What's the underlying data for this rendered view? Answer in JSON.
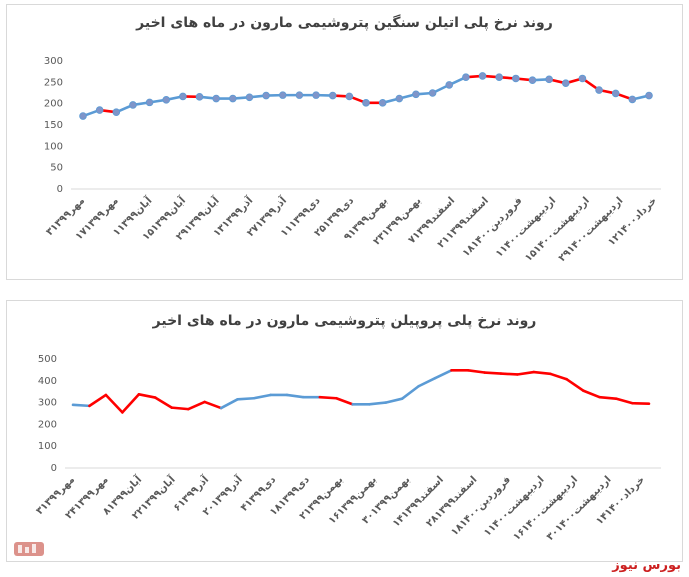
{
  "footer": {
    "source": "بورس نیوز"
  },
  "colors": {
    "blue": "#5b9bd5",
    "red": "#ff0000",
    "marker": "#7f95c9"
  },
  "chart_data": [
    {
      "type": "line",
      "title": "روند نرخ پلی اتیلن سنگین پتروشیمی مارون در ماه های اخیر",
      "markers": true,
      "ylim": [
        0,
        300
      ],
      "yticks": [
        "0",
        "50",
        "100",
        "150",
        "200",
        "250",
        "300"
      ],
      "x_labels": [
        "۳مهر۱۳۹۹",
        "۱۷مهر۱۳۹۹",
        "۱آبان۱۳۹۹",
        "۱۵آبان۱۳۹۹",
        "۲۹آبان۱۳۹۹",
        "۱۳آذر۱۳۹۹",
        "۲۷آذر۱۳۹۹",
        "۱۱دی۱۳۹۹",
        "۲۵دی۱۳۹۹",
        "۹بهمن۱۳۹۹",
        "۲۳بهمن۱۳۹۹",
        "۷اسفند۱۳۹۹",
        "۲۱اسفند۱۳۹۹",
        "۱۸فروردین۱۴۰۰",
        "۱اردیبهشت۱۴۰۰",
        "۱۵اردیبهشت۱۴۰۰",
        "۲۹اردیبهشت۱۴۰۰",
        "۱۲خرداد۱۴۰۰"
      ],
      "values": [
        171,
        185,
        180,
        197,
        203,
        209,
        217,
        216,
        212,
        212,
        215,
        219,
        220,
        220,
        220,
        219,
        217,
        202,
        202,
        212,
        222,
        225,
        244,
        262,
        265,
        262,
        259,
        255,
        257,
        248,
        259,
        232,
        224,
        210,
        219
      ],
      "segment_colors": [
        "blue",
        "red",
        "blue",
        "blue",
        "blue",
        "blue",
        "red",
        "blue",
        "blue",
        "blue",
        "blue",
        "blue",
        "blue",
        "blue",
        "blue",
        "red",
        "red",
        "red",
        "blue",
        "blue",
        "blue",
        "blue",
        "blue",
        "red",
        "red",
        "red",
        "red",
        "blue",
        "red",
        "red",
        "red",
        "red",
        "red",
        "blue"
      ]
    },
    {
      "type": "line",
      "title": "روند نرخ پلی پروپیلن پتروشیمی مارون در ماه های اخیر",
      "markers": false,
      "ylim": [
        0,
        500
      ],
      "yticks": [
        "0",
        "100",
        "200",
        "300",
        "400",
        "500"
      ],
      "x_labels": [
        "۳مهر۱۳۹۹",
        "۲۴مهر۱۳۹۹",
        "۸آبان۱۳۹۹",
        "۲۲آبان۱۳۹۹",
        "۶آذر۱۳۹۹",
        "۲۰آذر۱۳۹۹",
        "۴دی۱۳۹۹",
        "۱۸دی۱۳۹۹",
        "۲بهمن۱۳۹۹",
        "۱۶بهمن۱۳۹۹",
        "۳۰بهمن۱۳۹۹",
        "۱۴اسفند۱۳۹۹",
        "۲۸اسفند۱۳۹۹",
        "۱۸فروردین۱۴۰۰",
        "۱اردیبهشت۱۴۰۰",
        "۱۶اردیبهشت۱۴۰۰",
        "۳۰اردیبهشت۱۴۰۰",
        "۱۴خرداد۱۴۰۰"
      ],
      "values": [
        290,
        285,
        335,
        255,
        338,
        323,
        277,
        270,
        303,
        275,
        315,
        320,
        335,
        335,
        325,
        325,
        320,
        292,
        292,
        300,
        318,
        375,
        412,
        448,
        448,
        438,
        433,
        429,
        440,
        432,
        407,
        355,
        325,
        318,
        297,
        295
      ],
      "segment_colors": [
        "blue",
        "red",
        "red",
        "red",
        "red",
        "red",
        "red",
        "red",
        "red",
        "blue",
        "blue",
        "blue",
        "blue",
        "blue",
        "blue",
        "red",
        "red",
        "blue",
        "blue",
        "blue",
        "blue",
        "blue",
        "blue",
        "red",
        "red",
        "red",
        "red",
        "red",
        "red",
        "red",
        "red",
        "red",
        "red",
        "red",
        "red"
      ]
    }
  ]
}
